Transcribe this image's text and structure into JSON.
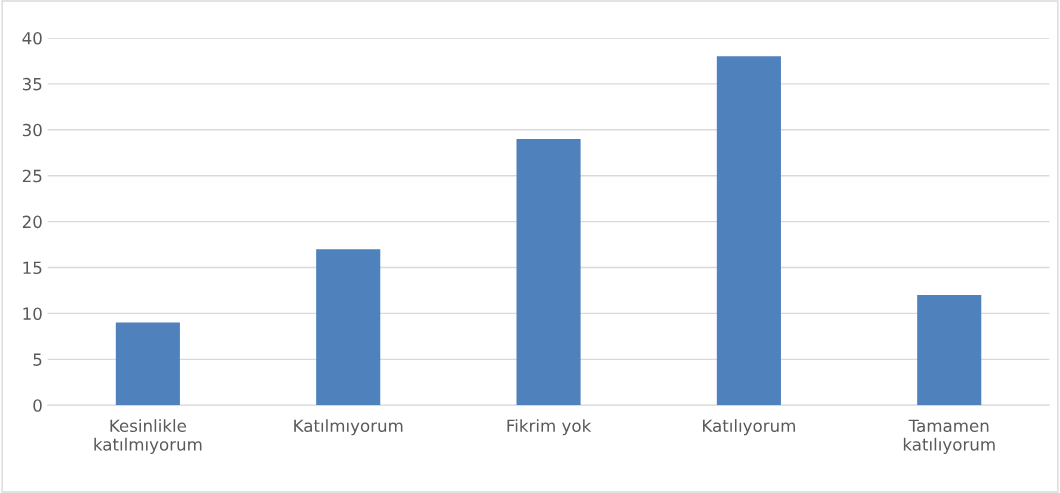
{
  "chart_data": {
    "type": "bar",
    "categories": [
      "Kesinlikle\nkatılmıyorum",
      "Katılmıyorum",
      "Fikrim yok",
      "Katılıyorum",
      "Tamamen\nkatılıyorum"
    ],
    "values": [
      9,
      17,
      29,
      38,
      12
    ],
    "color": "#4f81bd",
    "ylim": [
      0,
      40
    ],
    "yticks": [
      0,
      5,
      10,
      15,
      20,
      25,
      30,
      35,
      40
    ],
    "grid": "y"
  }
}
